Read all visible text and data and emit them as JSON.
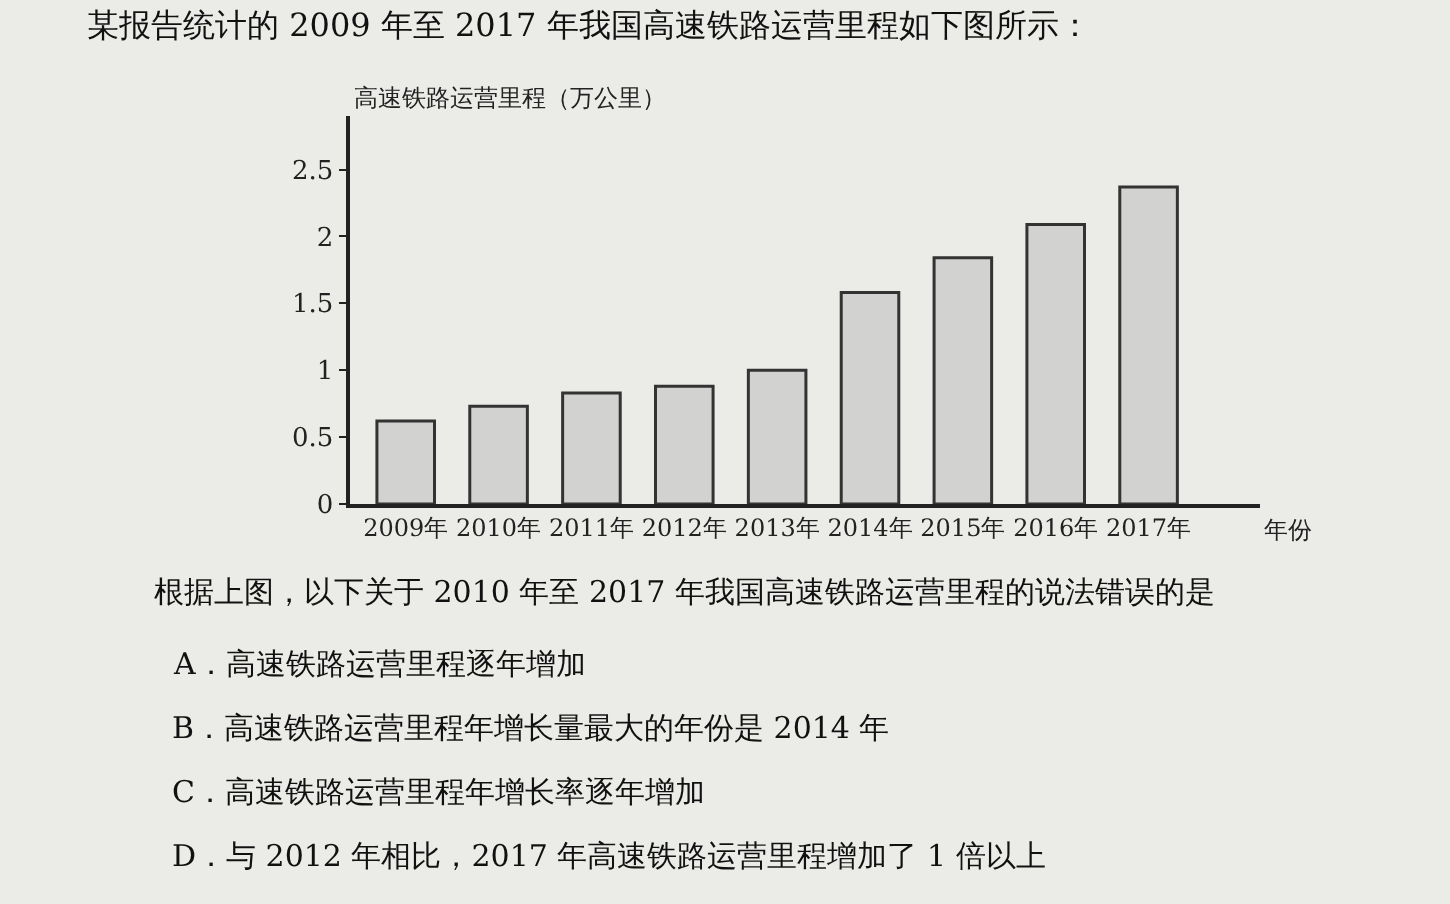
{
  "chart_data": {
    "type": "bar",
    "title": "某报告统计的 2009 年至 2017 年我国高速铁路运营里程如下图所示：",
    "ylabel": "高速铁路运营里程（万公里）",
    "xlabel": "年份",
    "categories": [
      "2009年",
      "2010年",
      "2011年",
      "2012年",
      "2013年",
      "2014年",
      "2015年",
      "2016年",
      "2017年"
    ],
    "values": [
      0.62,
      0.73,
      0.83,
      0.88,
      1.0,
      1.58,
      1.84,
      2.09,
      2.37
    ],
    "color": "#d2d2d0",
    "ylim": [
      0,
      2.9
    ],
    "yticks": [
      0,
      0.5,
      1,
      1.5,
      2,
      2.5
    ],
    "grid": false,
    "annotations": [
      "根据上图，以下关于 2010 年至 2017 年我国高速铁路运营里程的说法错误的是",
      "A．高速铁路运营里程逐年增加",
      "B．高速铁路运营里程年增长量最大的年份是 2014 年",
      "C．高速铁路运营里程年增长率逐年增加",
      "D．与 2012 年相比，2017 年高速铁路运营里程增加了 1 倍以上"
    ]
  }
}
